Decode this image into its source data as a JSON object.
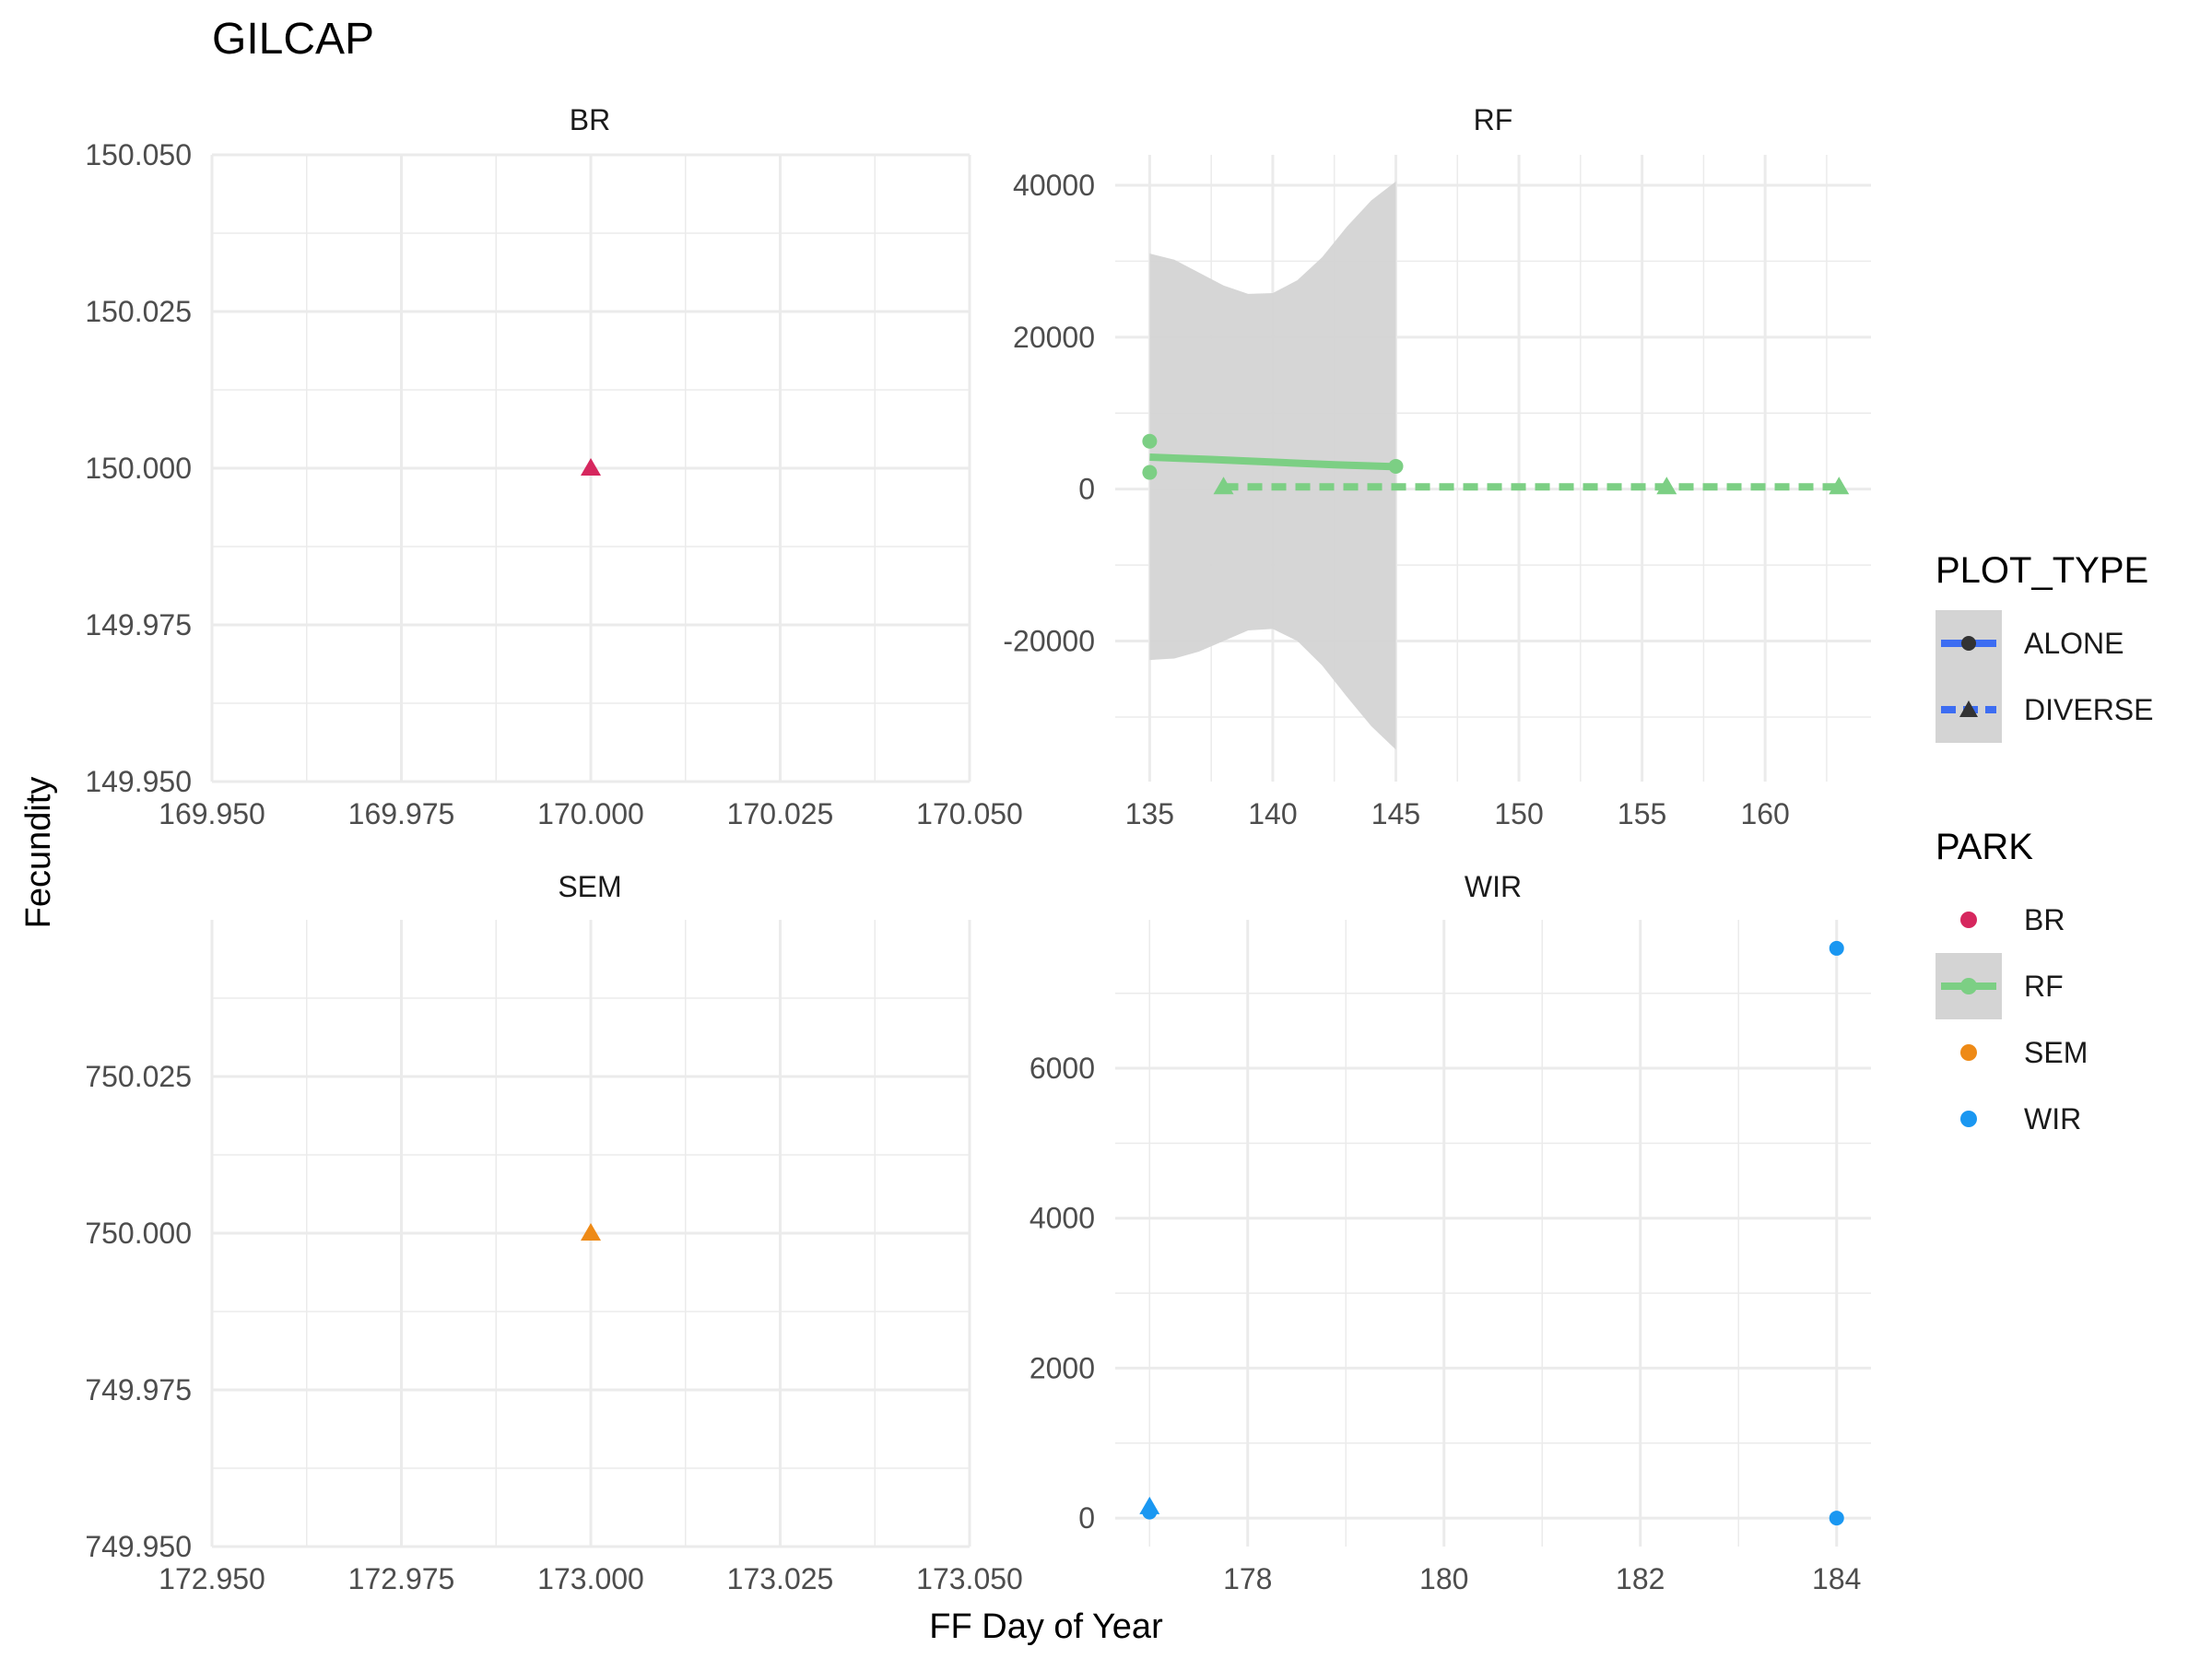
{
  "title": "GILCAP",
  "xlabel": "FF Day of Year",
  "ylabel": "Fecundity",
  "colors": {
    "BR": "#d6275e",
    "RF": "#7ccf84",
    "SEM": "#ee8a16",
    "WIR": "#1a97f1",
    "legend_line": "#3d6df2",
    "ribbon": "#d4d4d4",
    "grid": "#ebebeb"
  },
  "legend": {
    "plot_type": {
      "title": "PLOT_TYPE",
      "items": [
        {
          "label": "ALONE",
          "shape": "circle",
          "line": "solid"
        },
        {
          "label": "DIVERSE",
          "shape": "triangle",
          "line": "dashed"
        }
      ]
    },
    "park": {
      "title": "PARK",
      "items": [
        {
          "label": "BR",
          "color_key": "BR",
          "line": false
        },
        {
          "label": "RF",
          "color_key": "RF",
          "line": true
        },
        {
          "label": "SEM",
          "color_key": "SEM",
          "line": false
        },
        {
          "label": "WIR",
          "color_key": "WIR",
          "line": false
        }
      ]
    }
  },
  "chart_data": [
    {
      "type": "scatter",
      "panel": "BR",
      "color_key": "BR",
      "xlim": [
        169.95,
        170.05
      ],
      "ylim": [
        149.95,
        150.05
      ],
      "x_ticks": [
        169.95,
        169.975,
        170.0,
        170.025,
        170.05
      ],
      "x_tick_labels": [
        "169.950",
        "169.975",
        "170.000",
        "170.025",
        "170.050"
      ],
      "y_ticks": [
        149.95,
        149.975,
        150.0,
        150.025,
        150.05
      ],
      "y_tick_labels": [
        "149.950",
        "149.975",
        "150.000",
        "150.025",
        "150.050"
      ],
      "points": [
        {
          "x": 170.0,
          "y": 150.0,
          "plot_type": "DIVERSE"
        }
      ],
      "lines": [],
      "ribbons": []
    },
    {
      "type": "scatter",
      "panel": "RF",
      "color_key": "RF",
      "xlim": [
        133.6,
        164.3
      ],
      "ylim": [
        -38500,
        44000
      ],
      "x_ticks": [
        135,
        140,
        145,
        150,
        155,
        160
      ],
      "x_tick_labels": [
        "135",
        "140",
        "145",
        "150",
        "155",
        "160"
      ],
      "y_ticks": [
        -20000,
        0,
        20000,
        40000
      ],
      "y_tick_labels": [
        "-20000",
        "0",
        "20000",
        "40000"
      ],
      "points": [
        {
          "x": 135,
          "y": 6300,
          "plot_type": "ALONE"
        },
        {
          "x": 135,
          "y": 2200,
          "plot_type": "ALONE"
        },
        {
          "x": 145,
          "y": 3000,
          "plot_type": "ALONE"
        },
        {
          "x": 138,
          "y": 300,
          "plot_type": "DIVERSE"
        },
        {
          "x": 156,
          "y": 300,
          "plot_type": "DIVERSE"
        },
        {
          "x": 163,
          "y": 300,
          "plot_type": "DIVERSE"
        }
      ],
      "lines": [
        {
          "plot_type": "ALONE",
          "dash": "solid",
          "points": [
            [
              135,
              4200
            ],
            [
              137.5,
              3900
            ],
            [
              140,
              3550
            ],
            [
              142.5,
              3200
            ],
            [
              145,
              2950
            ]
          ]
        },
        {
          "plot_type": "DIVERSE",
          "dash": "dashed",
          "points": [
            [
              138,
              300
            ],
            [
              145,
              300
            ],
            [
              150,
              300
            ],
            [
              156,
              300
            ],
            [
              163,
              300
            ]
          ]
        }
      ],
      "ribbons": [
        {
          "plot_type": "ALONE",
          "x": [
            135,
            136,
            137,
            138,
            139,
            140,
            141,
            142,
            143,
            144,
            145
          ],
          "upper": [
            31000,
            30200,
            28500,
            26800,
            25700,
            25800,
            27500,
            30500,
            34500,
            38000,
            40500
          ],
          "lower": [
            -22500,
            -22300,
            -21400,
            -20000,
            -18600,
            -18400,
            -20000,
            -23200,
            -27300,
            -31200,
            -34300
          ]
        }
      ]
    },
    {
      "type": "scatter",
      "panel": "SEM",
      "color_key": "SEM",
      "xlim": [
        172.95,
        173.05
      ],
      "ylim": [
        749.95,
        750.05
      ],
      "x_ticks": [
        172.95,
        172.975,
        173.0,
        173.025,
        173.05
      ],
      "x_tick_labels": [
        "172.950",
        "172.975",
        "173.000",
        "173.025",
        "173.050"
      ],
      "y_ticks": [
        749.95,
        749.975,
        750.0,
        750.025
      ],
      "y_tick_labels": [
        "749.950",
        "749.975",
        "750.000",
        "750.025"
      ],
      "points": [
        {
          "x": 173.0,
          "y": 750.0,
          "plot_type": "DIVERSE"
        }
      ],
      "lines": [],
      "ribbons": []
    },
    {
      "type": "scatter",
      "panel": "WIR",
      "color_key": "WIR",
      "xlim": [
        176.65,
        184.35
      ],
      "ylim": [
        -380,
        7980
      ],
      "x_ticks": [
        178,
        180,
        182,
        184
      ],
      "x_tick_labels": [
        "178",
        "180",
        "182",
        "184"
      ],
      "y_ticks": [
        0,
        2000,
        4000,
        6000
      ],
      "y_tick_labels": [
        "0",
        "2000",
        "4000",
        "6000"
      ],
      "points": [
        {
          "x": 177,
          "y": 150,
          "plot_type": "DIVERSE"
        },
        {
          "x": 177,
          "y": 80,
          "plot_type": "ALONE"
        },
        {
          "x": 184,
          "y": 7600,
          "plot_type": "ALONE"
        },
        {
          "x": 184,
          "y": 0,
          "plot_type": "ALONE"
        }
      ],
      "lines": [],
      "ribbons": []
    }
  ]
}
